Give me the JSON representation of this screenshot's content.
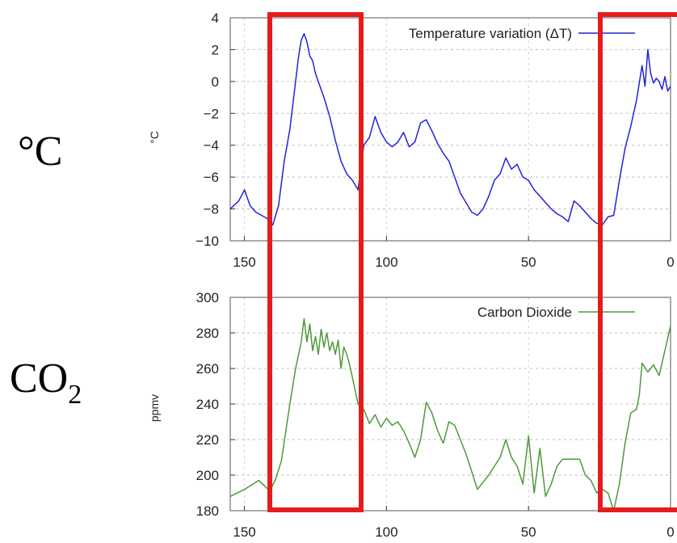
{
  "side_labels": {
    "temp": "°C",
    "co2_base": "CO",
    "co2_sub": "2"
  },
  "chart_data": [
    {
      "type": "line",
      "ylabel": "°C",
      "xlim": [
        155,
        0
      ],
      "ylim": [
        -10,
        4
      ],
      "x_ticks": [
        "150",
        "100",
        "50",
        "0"
      ],
      "y_ticks": [
        "4",
        "2",
        "0",
        "−2",
        "−4",
        "−6",
        "−8",
        "−10"
      ],
      "grid": true,
      "legend_position": "top-right",
      "series": [
        {
          "name": "Temperature variation (ΔT)",
          "color": "#2222dd",
          "x": [
            155,
            152,
            150,
            148,
            146,
            144,
            142,
            140,
            138,
            136,
            134,
            132,
            131,
            130,
            129,
            128,
            127,
            126,
            125,
            124,
            122,
            120,
            118,
            116,
            114,
            112,
            110,
            108,
            106,
            104,
            102,
            100,
            98,
            96,
            94,
            92,
            90,
            88,
            86,
            84,
            82,
            80,
            78,
            76,
            74,
            72,
            70,
            68,
            66,
            64,
            62,
            60,
            58,
            56,
            54,
            52,
            50,
            48,
            46,
            44,
            42,
            40,
            38,
            36,
            34,
            32,
            30,
            28,
            26,
            24,
            22,
            20,
            18,
            16,
            14,
            12,
            10,
            9,
            8,
            7,
            6,
            5,
            4,
            3,
            2,
            1,
            0
          ],
          "y": [
            -8,
            -7.5,
            -6.8,
            -7.8,
            -8.2,
            -8.4,
            -8.6,
            -9,
            -7.8,
            -5,
            -3,
            0,
            1.5,
            2.6,
            3,
            2.5,
            1.6,
            1.3,
            0.5,
            0,
            -1,
            -2.2,
            -3.7,
            -5,
            -5.8,
            -6.2,
            -6.8,
            -4,
            -3.5,
            -2.2,
            -3.2,
            -3.8,
            -4.1,
            -3.8,
            -3.2,
            -4.1,
            -3.8,
            -2.6,
            -2.4,
            -3.1,
            -3.9,
            -4.5,
            -5,
            -6,
            -7,
            -7.6,
            -8.2,
            -8.4,
            -8,
            -7.2,
            -6.2,
            -5.8,
            -4.8,
            -5.5,
            -5.2,
            -6,
            -6.2,
            -6.8,
            -7.2,
            -7.6,
            -8,
            -8.3,
            -8.5,
            -8.8,
            -7.5,
            -7.8,
            -8.2,
            -8.6,
            -8.9,
            -9,
            -8.5,
            -8.4,
            -6.2,
            -4.2,
            -2.8,
            -1.2,
            1,
            -0.3,
            2,
            0.5,
            -0.1,
            0.2,
            0,
            -0.5,
            0.3,
            -0.6,
            -0.3
          ]
        }
      ]
    },
    {
      "type": "line",
      "ylabel": "ppmv",
      "xlim": [
        155,
        0
      ],
      "ylim": [
        180,
        300
      ],
      "x_ticks": [
        "150",
        "100",
        "50",
        "0"
      ],
      "y_ticks": [
        "300",
        "280",
        "260",
        "240",
        "220",
        "200",
        "180"
      ],
      "grid": true,
      "legend_position": "top-right",
      "series": [
        {
          "name": "Carbon Dioxide",
          "color": "#4c9a3a",
          "x": [
            155,
            150,
            145,
            141,
            139,
            137,
            134,
            132,
            130,
            129,
            128,
            127,
            126,
            125,
            124,
            123,
            122,
            121,
            120,
            119,
            118,
            117,
            116,
            115,
            114,
            113,
            112,
            110,
            108,
            106,
            104,
            102,
            100,
            98,
            96,
            94,
            92,
            90,
            88,
            86,
            84,
            82,
            80,
            78,
            76,
            74,
            72,
            70,
            68,
            66,
            64,
            62,
            60,
            58,
            56,
            54,
            52,
            50,
            48,
            46,
            44,
            42,
            40,
            38,
            36,
            34,
            32,
            30,
            28,
            26,
            24,
            22,
            20,
            18,
            16,
            14,
            13,
            12,
            11,
            10,
            8,
            6,
            4,
            2,
            0
          ],
          "y": [
            188,
            192,
            197,
            191,
            198,
            208,
            240,
            260,
            275,
            288,
            275,
            285,
            270,
            278,
            268,
            282,
            272,
            280,
            270,
            275,
            268,
            276,
            260,
            272,
            268,
            262,
            255,
            240,
            237,
            229,
            234,
            227,
            232,
            228,
            230,
            225,
            218,
            210,
            220,
            241,
            235,
            225,
            218,
            230,
            228,
            220,
            212,
            202,
            192,
            196,
            200,
            205,
            210,
            220,
            210,
            205,
            195,
            222,
            190,
            215,
            188,
            195,
            205,
            209,
            209,
            209,
            209,
            200,
            197,
            190,
            192,
            190,
            180,
            195,
            218,
            235,
            236,
            237,
            245,
            263,
            258,
            262,
            256,
            270,
            284
          ]
        }
      ]
    }
  ]
}
